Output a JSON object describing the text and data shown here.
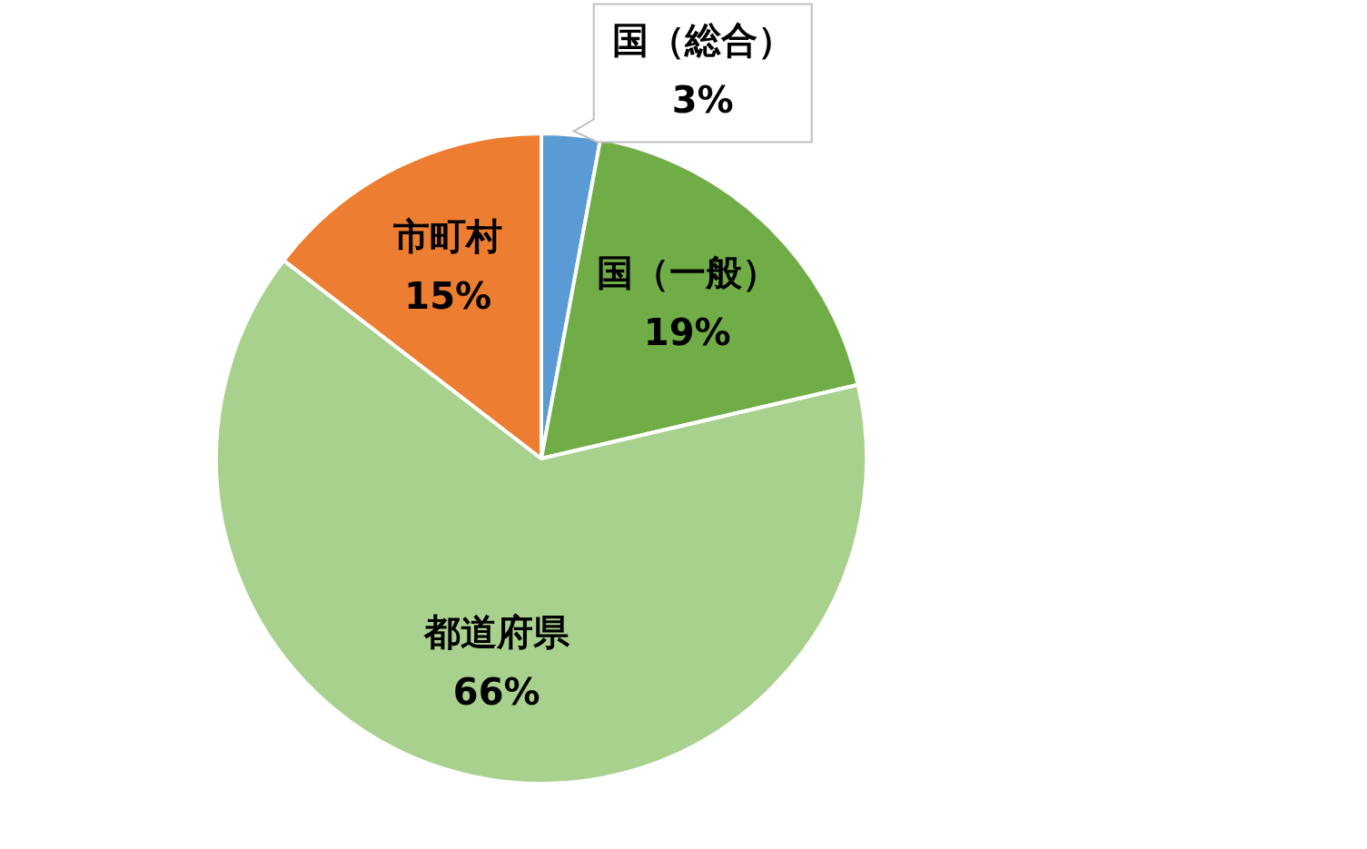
{
  "chart_data": {
    "type": "pie",
    "categories": [
      "国（総合）",
      "国（一般）",
      "都道府県",
      "市町村"
    ],
    "values": [
      3,
      19,
      66,
      15
    ],
    "value_labels": [
      "3%",
      "19%",
      "66%",
      "15%"
    ],
    "colors": [
      "#5b9bd5",
      "#70ad47",
      "#a9d18e",
      "#ed7d31"
    ],
    "legend": false
  }
}
